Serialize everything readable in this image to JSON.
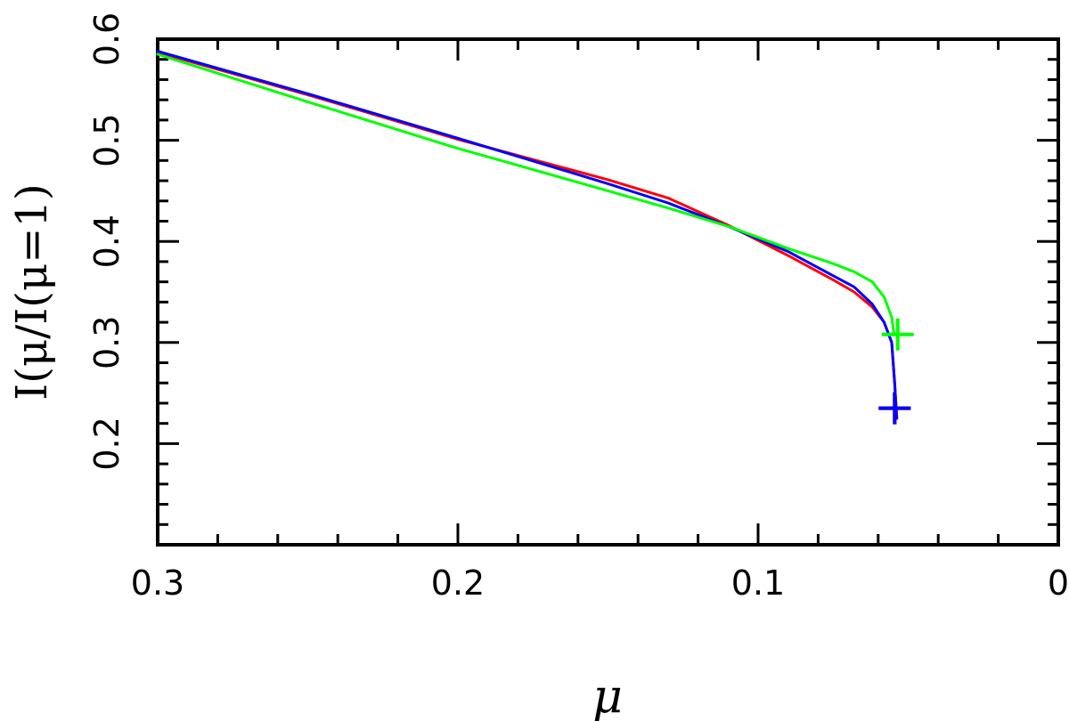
{
  "chart_data": {
    "type": "line",
    "xlabel": "μ",
    "ylabel": "I(μ/I(μ=1)",
    "xlim": [
      0.3,
      0
    ],
    "ylim": [
      0.1,
      0.6
    ],
    "x_ticks": [
      0.3,
      0.2,
      0.1,
      0
    ],
    "x_tick_labels": [
      "0.3",
      "0.2",
      "0.1",
      "0"
    ],
    "y_ticks": [
      0.2,
      0.3,
      0.4,
      0.5,
      0.6
    ],
    "y_tick_labels": [
      "0.2",
      "0.3",
      "0.4",
      "0.5",
      "0.6"
    ],
    "x_minor_step": 0.02,
    "y_minor_step": 0.02,
    "grid": false,
    "legend": "none",
    "series": [
      {
        "color": "#ff0000",
        "points": [
          [
            0.3,
            0.587
          ],
          [
            0.25,
            0.545
          ],
          [
            0.2,
            0.501
          ],
          [
            0.15,
            0.461
          ],
          [
            0.13,
            0.443
          ],
          [
            0.11,
            0.416
          ],
          [
            0.09,
            0.386
          ],
          [
            0.075,
            0.362
          ],
          [
            0.068,
            0.35
          ],
          [
            0.062,
            0.335
          ],
          [
            0.058,
            0.32
          ],
          [
            0.0555,
            0.3
          ],
          [
            0.0545,
            0.26
          ],
          [
            0.0538,
            0.225
          ]
        ],
        "marker": {
          "x": 0.0545,
          "y": 0.235
        }
      },
      {
        "color": "#0000ff",
        "points": [
          [
            0.3,
            0.588
          ],
          [
            0.25,
            0.546
          ],
          [
            0.2,
            0.502
          ],
          [
            0.15,
            0.457
          ],
          [
            0.13,
            0.438
          ],
          [
            0.11,
            0.415
          ],
          [
            0.09,
            0.39
          ],
          [
            0.075,
            0.366
          ],
          [
            0.068,
            0.355
          ],
          [
            0.062,
            0.338
          ],
          [
            0.058,
            0.32
          ],
          [
            0.0555,
            0.3
          ],
          [
            0.0545,
            0.26
          ],
          [
            0.0538,
            0.225
          ]
        ],
        "marker": {
          "x": 0.0545,
          "y": 0.235
        }
      },
      {
        "color": "#00ff00",
        "points": [
          [
            0.3,
            0.585
          ],
          [
            0.25,
            0.538
          ],
          [
            0.2,
            0.492
          ],
          [
            0.15,
            0.45
          ],
          [
            0.13,
            0.433
          ],
          [
            0.11,
            0.415
          ],
          [
            0.09,
            0.393
          ],
          [
            0.075,
            0.378
          ],
          [
            0.068,
            0.37
          ],
          [
            0.062,
            0.36
          ],
          [
            0.058,
            0.345
          ],
          [
            0.0555,
            0.325
          ],
          [
            0.0548,
            0.31
          ]
        ],
        "marker": {
          "x": 0.0535,
          "y": 0.308
        }
      }
    ]
  }
}
